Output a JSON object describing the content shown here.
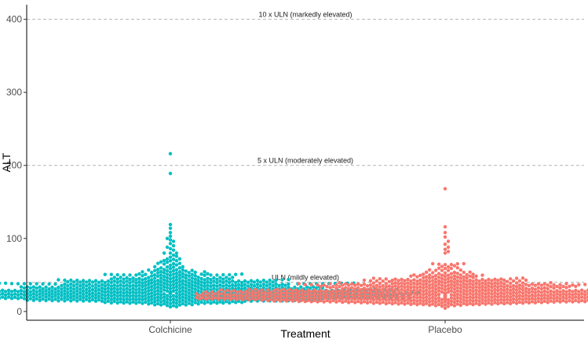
{
  "chart_data": {
    "type": "scatter",
    "subtype": "beeswarm",
    "title": "",
    "xlabel": "Treatment",
    "ylabel": "ALT",
    "ylim": [
      -12,
      420
    ],
    "yticks": [
      0,
      100,
      200,
      300,
      400
    ],
    "categories": [
      "Colchicine",
      "Placebo"
    ],
    "grid": false,
    "reference_lines": [
      {
        "value": 400,
        "label": "10 x ULN (markedly elevated)"
      },
      {
        "value": 200,
        "label": "5 x ULN (moderately elevated)"
      },
      {
        "value": 40,
        "label": "ULN (mildly elevated)"
      }
    ],
    "series": [
      {
        "name": "Colchicine",
        "color": "#00BFC4",
        "n": 950,
        "median": 27,
        "outliers": [
          216,
          189,
          119,
          114,
          108,
          103,
          100,
          98,
          96,
          93,
          90,
          88,
          86,
          84
        ]
      },
      {
        "name": "Placebo",
        "color": "#F8766D",
        "n": 950,
        "median": 24,
        "outliers": [
          168,
          116,
          108,
          102,
          96,
          92,
          88,
          85,
          82
        ]
      }
    ]
  }
}
